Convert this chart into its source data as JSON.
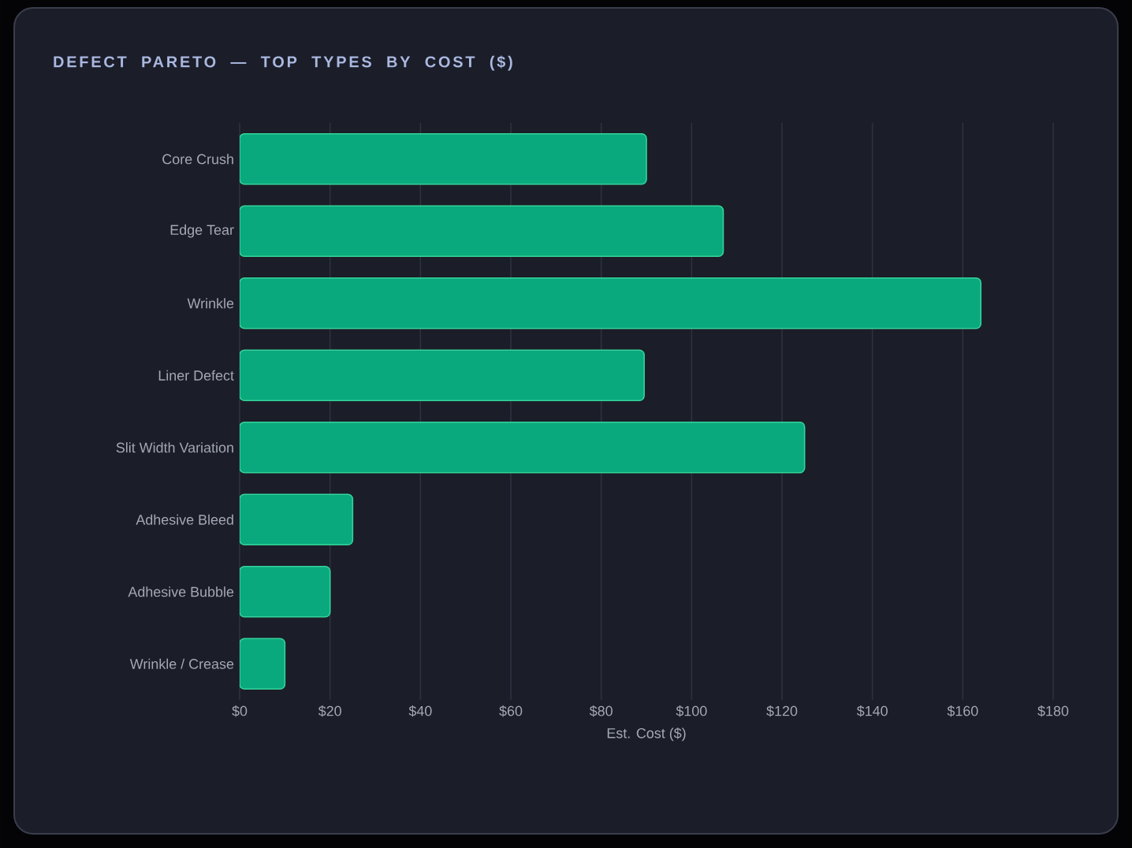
{
  "chart_data": {
    "type": "bar",
    "orientation": "horizontal",
    "title": "DEFECT PARETO — TOP TYPES BY COST ($)",
    "xlabel": "Est. Cost ($)",
    "categories": [
      "Core Crush",
      "Edge Tear",
      "Wrinkle",
      "Liner Defect",
      "Slit Width Variation",
      "Adhesive Bleed",
      "Adhesive Bubble",
      "Wrinkle / Crease"
    ],
    "values": [
      90,
      107,
      164,
      89.5,
      125,
      25,
      20,
      10
    ],
    "color": "#0aa87d",
    "xlim": [
      0,
      180
    ],
    "xticks": [
      {
        "value": 0,
        "label": "$0"
      },
      {
        "value": 20,
        "label": "$20"
      },
      {
        "value": 40,
        "label": "$40"
      },
      {
        "value": 60,
        "label": "$60"
      },
      {
        "value": 80,
        "label": "$80"
      },
      {
        "value": 100,
        "label": "$100"
      },
      {
        "value": 120,
        "label": "$120"
      },
      {
        "value": 140,
        "label": "$140"
      },
      {
        "value": 160,
        "label": "$160"
      },
      {
        "value": 180,
        "label": "$180"
      }
    ],
    "grid": "x"
  }
}
